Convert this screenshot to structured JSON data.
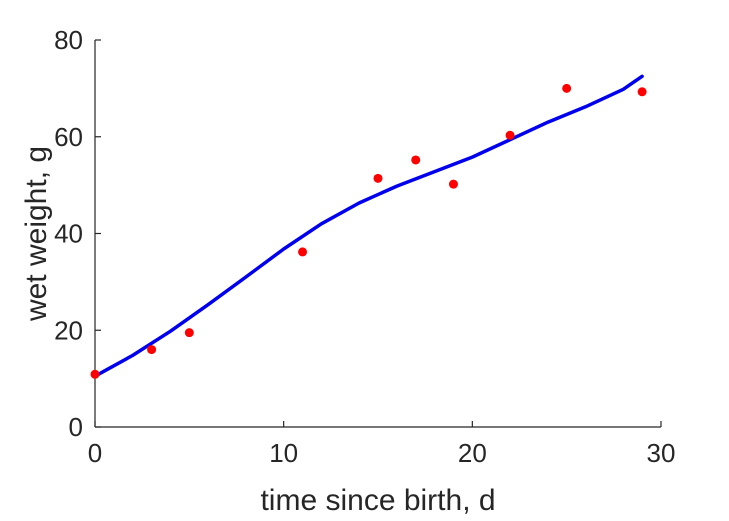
{
  "chart_data": {
    "type": "scatter",
    "title": "",
    "xlabel": "time since birth, d",
    "ylabel": "wet weight, g",
    "xlim": [
      0,
      30
    ],
    "ylim": [
      0,
      80
    ],
    "xticks": [
      0,
      10,
      20,
      30
    ],
    "yticks": [
      0,
      20,
      40,
      60,
      80
    ],
    "grid": false,
    "series": [
      {
        "kind": "points",
        "color": "#ff0000",
        "x": [
          0,
          3,
          5,
          11,
          15,
          17,
          19,
          22,
          25,
          29
        ],
        "y": [
          10.9,
          16.0,
          19.5,
          36.2,
          51.4,
          55.2,
          50.2,
          60.3,
          70.0,
          69.3
        ]
      },
      {
        "kind": "line",
        "color": "#0000ee",
        "x": [
          0,
          2,
          4,
          6,
          8,
          10,
          12,
          14,
          16,
          18,
          20,
          22,
          24,
          26,
          28,
          29
        ],
        "y": [
          10.5,
          14.8,
          19.8,
          25.3,
          31.0,
          36.8,
          42.0,
          46.3,
          49.8,
          52.8,
          55.8,
          59.4,
          63.0,
          66.2,
          69.8,
          72.5
        ]
      }
    ]
  }
}
